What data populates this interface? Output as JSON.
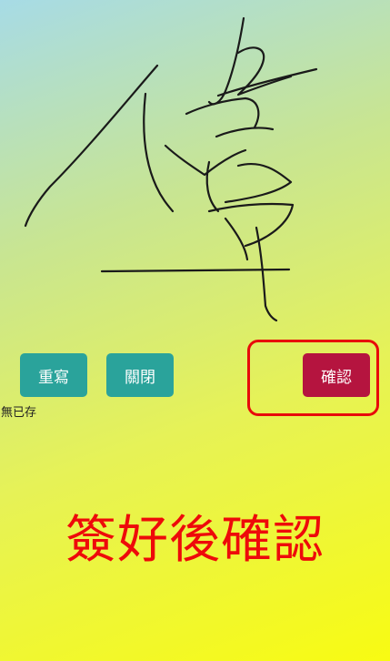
{
  "buttons": {
    "rewrite_label": "重寫",
    "close_label": "關閉",
    "confirm_label": "確認"
  },
  "status": {
    "save_state": "無已存"
  },
  "instruction": {
    "text": "簽好後確認"
  },
  "signature": {
    "handwritten_character": "偉"
  },
  "colors": {
    "button_teal": "#2aa39b",
    "button_confirm": "#b5143f",
    "highlight_red": "#e80a0a",
    "instruction_red": "#ee0a0a",
    "ink": "#1a1a1a"
  }
}
